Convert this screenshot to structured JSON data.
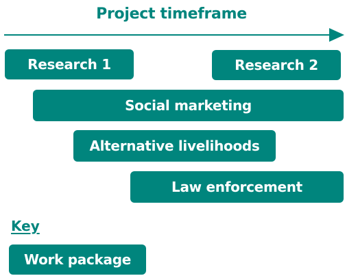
{
  "title": "Project timeframe",
  "colors": {
    "accent": "#00857d",
    "text_on_accent": "#ffffff"
  },
  "bars": {
    "research1": "Research 1",
    "research2": "Research 2",
    "social_marketing": "Social marketing",
    "alternative_livelihoods": "Alternative livelihoods",
    "law_enforcement": "Law enforcement"
  },
  "key": {
    "label": "Key",
    "item": "Work package"
  }
}
